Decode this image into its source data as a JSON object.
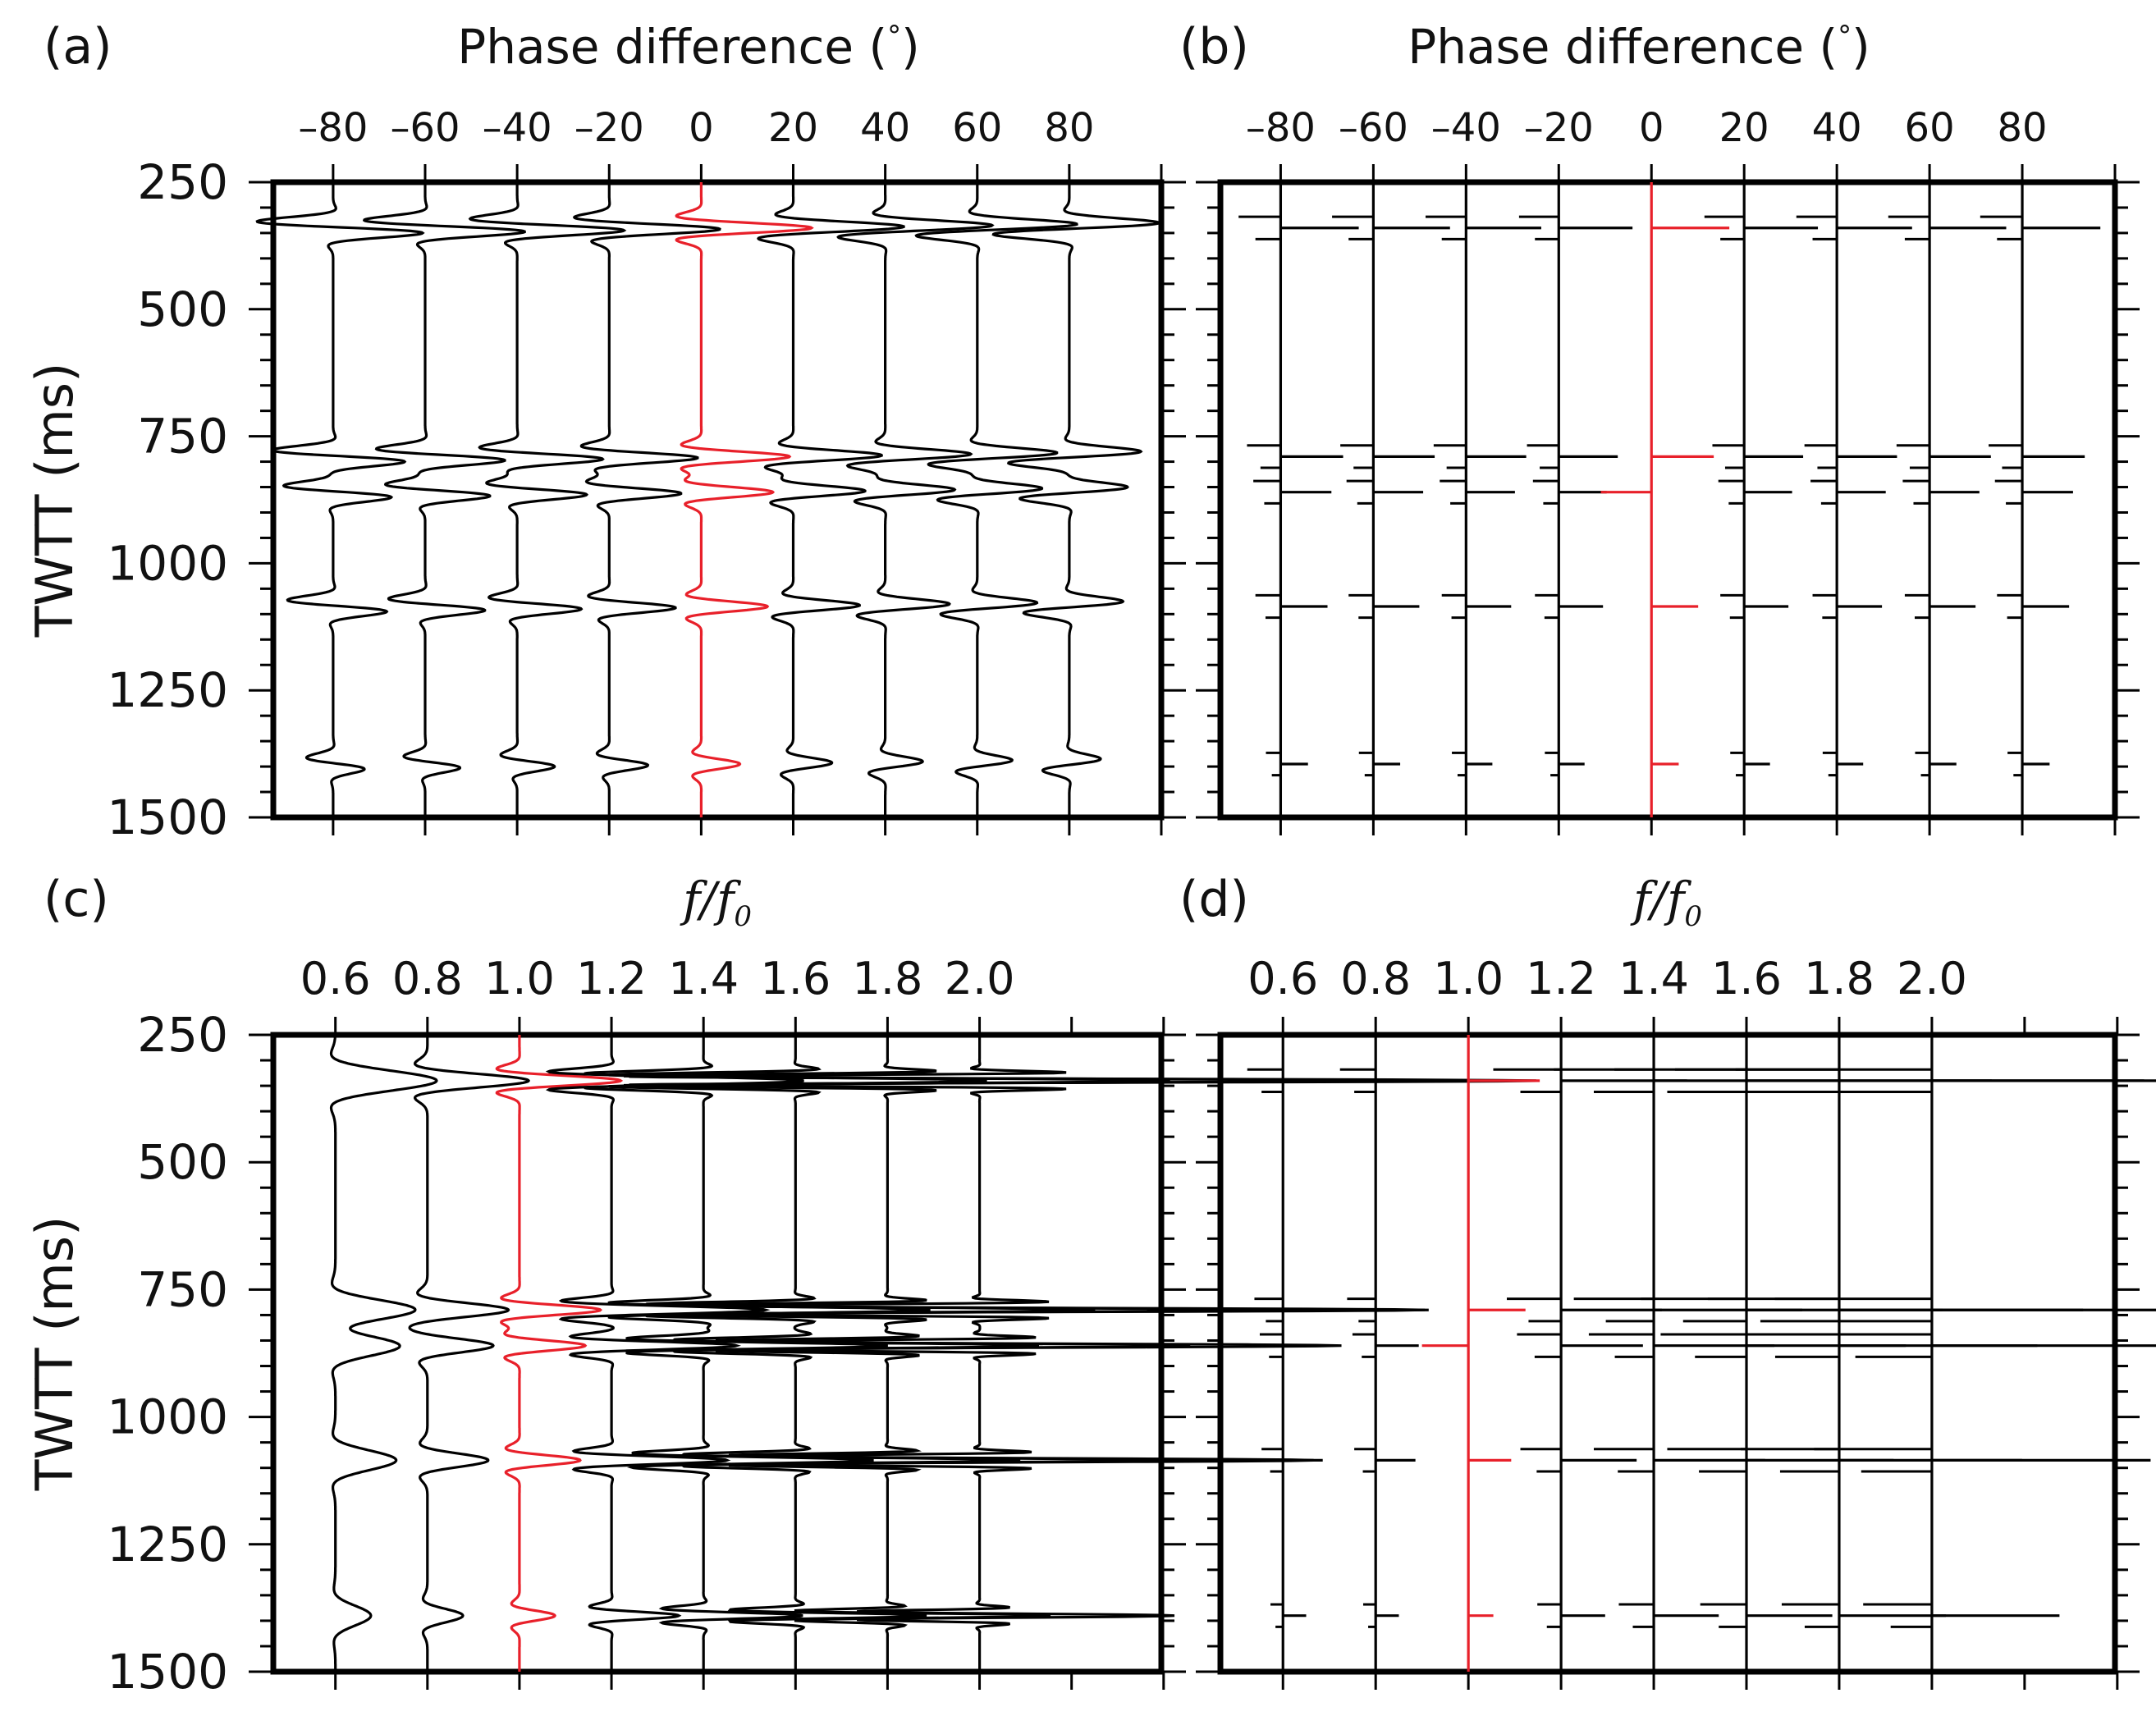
{
  "figure": {
    "colors": {
      "reference": "#e8202a",
      "trace": "#000000",
      "frame": "#000000"
    }
  },
  "chart_data": [
    {
      "panel": "a",
      "panel_label": "(a)",
      "type": "line",
      "style": "wiggle",
      "title": "Phase difference (°)",
      "title_main": "Phase difference (",
      "title_unit": "°",
      "title_close": ")",
      "xlabel": "Phase difference (°)",
      "ylabel": "TWTT (ms)",
      "xticks": [
        -80,
        -60,
        -40,
        -20,
        0,
        20,
        40,
        60,
        80
      ],
      "xtick_labels": [
        "–80",
        "–60",
        "–40",
        "–20",
        "0",
        "20",
        "40",
        "60",
        "80"
      ],
      "xlim": [
        -93,
        100
      ],
      "ylim": [
        250,
        1500
      ],
      "yticks": [
        250,
        500,
        750,
        1000,
        1250,
        1500
      ],
      "ytick_labels": [
        "250",
        "500",
        "750",
        "1000",
        "1250",
        "1500"
      ],
      "reference_trace": "0",
      "traces": [
        "-80",
        "-60",
        "-40",
        "-20",
        "0",
        "20",
        "40",
        "60",
        "80"
      ],
      "events_ms": [
        340,
        790,
        860,
        1085,
        1395
      ],
      "event_amplitudes": [
        1.0,
        0.8,
        0.65,
        0.6,
        0.35
      ]
    },
    {
      "panel": "b",
      "panel_label": "(b)",
      "type": "line",
      "style": "spike",
      "title": "Phase difference (°)",
      "title_main": "Phase difference (",
      "title_unit": "°",
      "title_close": ")",
      "xlabel": "Phase difference (°)",
      "ylabel": "",
      "xticks": [
        -80,
        -60,
        -40,
        -20,
        0,
        20,
        40,
        60,
        80
      ],
      "xtick_labels": [
        "–80",
        "–60",
        "–40",
        "–20",
        "0",
        "20",
        "40",
        "60",
        "80"
      ],
      "xlim": [
        -93,
        100
      ],
      "ylim": [
        250,
        1500
      ],
      "yticks": [
        250,
        500,
        750,
        1000,
        1250,
        1500
      ],
      "reference_trace": "0",
      "traces": [
        "-80",
        "-60",
        "-40",
        "-20",
        "0",
        "20",
        "40",
        "60",
        "80"
      ],
      "events_ms": [
        340,
        790,
        860,
        1085,
        1395
      ],
      "event_amplitudes": [
        1.0,
        0.8,
        0.65,
        0.6,
        0.35
      ]
    },
    {
      "panel": "c",
      "panel_label": "(c)",
      "type": "line",
      "style": "wiggle",
      "title_main": "f/f",
      "title_sub": "0",
      "xlabel": "f/f0",
      "ylabel": "TWTT (ms)",
      "xticks": [
        0.6,
        0.8,
        1.0,
        1.2,
        1.4,
        1.6,
        1.8,
        2.0
      ],
      "xtick_labels": [
        "0.6",
        "0.8",
        "1.0",
        "1.2",
        "1.4",
        "1.6",
        "1.8",
        "2.0"
      ],
      "xlim": [
        0.465,
        2.395
      ],
      "ylim": [
        250,
        1500
      ],
      "yticks": [
        250,
        500,
        750,
        1000,
        1250,
        1500
      ],
      "ytick_labels": [
        "250",
        "500",
        "750",
        "1000",
        "1250",
        "1500"
      ],
      "reference_trace": "1.0",
      "traces": [
        "0.6",
        "0.8",
        "1.0",
        "1.2",
        "1.4",
        "1.6",
        "1.8",
        "2.0"
      ],
      "events_ms": [
        340,
        790,
        860,
        1085,
        1390
      ],
      "event_amplitudes": [
        1.0,
        0.8,
        0.65,
        0.6,
        0.35
      ]
    },
    {
      "panel": "d",
      "panel_label": "(d)",
      "type": "line",
      "style": "spike",
      "title_main": "f/f",
      "title_sub": "0",
      "xlabel": "f/f0",
      "ylabel": "",
      "xticks": [
        0.6,
        0.8,
        1.0,
        1.2,
        1.4,
        1.6,
        1.8,
        2.0
      ],
      "xtick_labels": [
        "0.6",
        "0.8",
        "1.0",
        "1.2",
        "1.4",
        "1.6",
        "1.8",
        "2.0"
      ],
      "xlim": [
        0.465,
        2.395
      ],
      "ylim": [
        250,
        1500
      ],
      "yticks": [
        250,
        500,
        750,
        1000,
        1250,
        1500
      ],
      "reference_trace": "1.0",
      "traces": [
        "0.6",
        "0.8",
        "1.0",
        "1.2",
        "1.4",
        "1.6",
        "1.8",
        "2.0"
      ],
      "events_ms": [
        340,
        790,
        860,
        1085,
        1390
      ],
      "event_amplitudes": [
        1.0,
        0.8,
        0.65,
        0.6,
        0.35
      ]
    }
  ]
}
